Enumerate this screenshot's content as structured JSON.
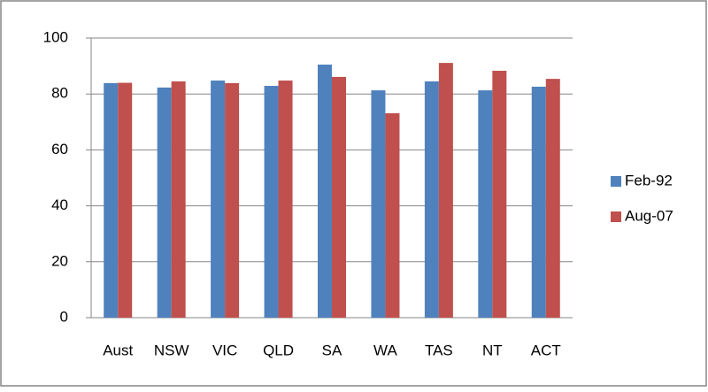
{
  "chart_data": {
    "type": "bar",
    "categories": [
      "Aust",
      "NSW",
      "VIC",
      "QLD",
      "SA",
      "WA",
      "TAS",
      "NT",
      "ACT"
    ],
    "series": [
      {
        "name": "Feb-92",
        "color": "#4f81bd",
        "values": [
          83.9,
          82.3,
          84.8,
          82.9,
          90.5,
          81.3,
          84.5,
          81.3,
          82.6
        ]
      },
      {
        "name": "Aug-07",
        "color": "#c0504d",
        "values": [
          84.0,
          84.5,
          83.9,
          84.8,
          86.1,
          73.1,
          91.1,
          88.3,
          85.4
        ]
      }
    ],
    "ylim": [
      0,
      100
    ],
    "yticks": [
      0,
      20,
      40,
      60,
      80,
      100
    ],
    "grid": true,
    "legend": "right"
  }
}
